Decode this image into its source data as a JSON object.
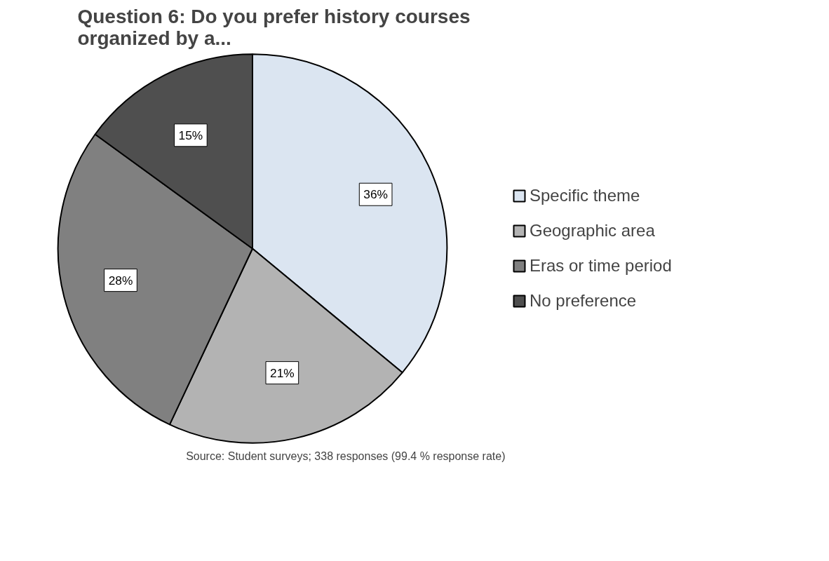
{
  "chart_data": {
    "type": "pie",
    "title": "Question 6: Do you prefer history courses organized by a...",
    "categories": [
      "Specific theme",
      "Geographic area",
      "Eras or time period",
      "No preference"
    ],
    "values": [
      36,
      21,
      28,
      15
    ],
    "colors": [
      "#dbe5f1",
      "#b3b3b3",
      "#808080",
      "#4f4f4f"
    ],
    "value_labels": [
      "36%",
      "21%",
      "28%",
      "15%"
    ],
    "legend": "right",
    "annotations": [
      "Source: Student surveys; 338 responses (99.4 % response rate)"
    ]
  }
}
